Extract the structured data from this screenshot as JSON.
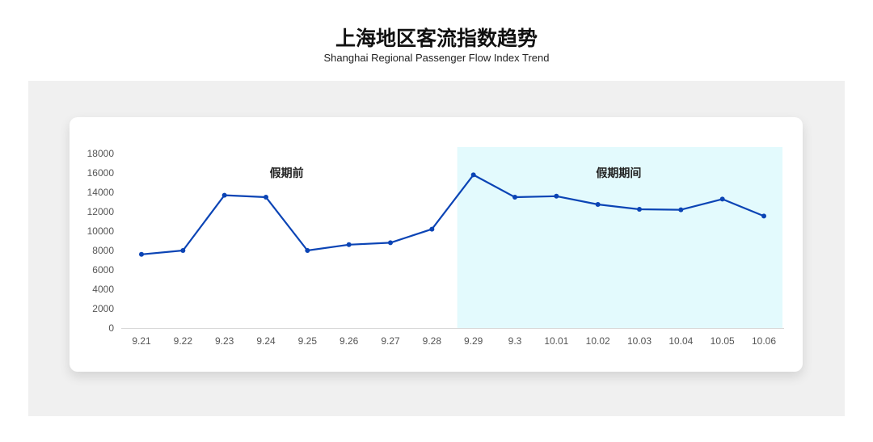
{
  "header": {
    "title": "上海地区客流指数趋势",
    "subtitle": "Shanghai Regional Passenger Flow Index Trend"
  },
  "chart_data": {
    "type": "line",
    "title": "上海地区客流指数趋势",
    "subtitle": "Shanghai Regional Passenger Flow Index Trend",
    "categories": [
      "9.21",
      "9.22",
      "9.23",
      "9.24",
      "9.25",
      "9.26",
      "9.27",
      "9.28",
      "9.29",
      "9.3",
      "10.01",
      "10.02",
      "10.03",
      "10.04",
      "10.05",
      "10.06"
    ],
    "values": [
      7600,
      8000,
      13700,
      13500,
      8000,
      8600,
      8800,
      10200,
      15800,
      13500,
      13600,
      12750,
      12250,
      12200,
      13300,
      11550
    ],
    "ylim": [
      0,
      18000
    ],
    "yticks": [
      0,
      2000,
      4000,
      6000,
      8000,
      10000,
      12000,
      14000,
      16000,
      18000
    ],
    "grid": false,
    "line_color": "#0b44b5",
    "annotations": [
      {
        "label": "假期前",
        "range": [
          "9.21",
          "9.28"
        ],
        "shaded": false
      },
      {
        "label": "假期期间",
        "range": [
          "9.29",
          "10.06"
        ],
        "shaded": true,
        "color": "#e3fafd"
      }
    ]
  }
}
